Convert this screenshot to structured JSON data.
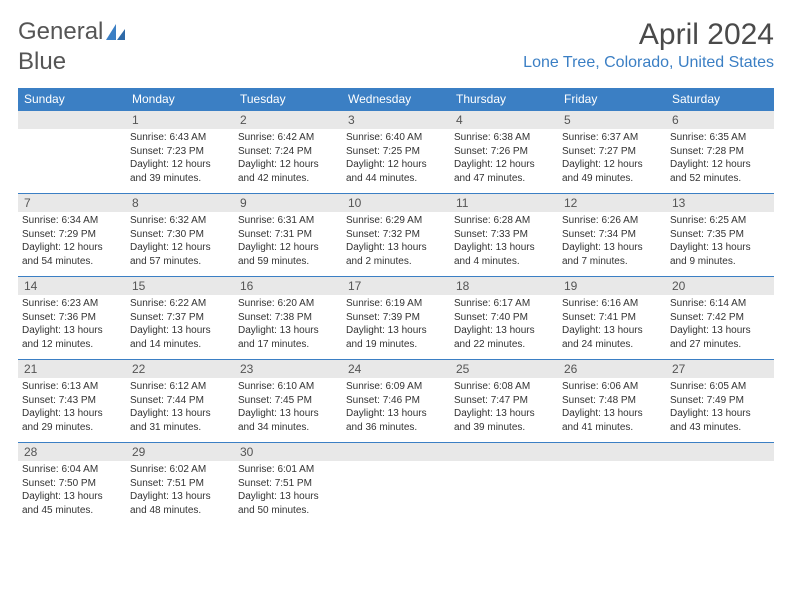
{
  "brand": {
    "part1": "General",
    "part2": "Blue"
  },
  "title": "April 2024",
  "location": "Lone Tree, Colorado, United States",
  "colors": {
    "accent": "#3b7fc4",
    "header_text": "#ffffff",
    "daynum_bg": "#e8e8e8",
    "text": "#333333",
    "title_color": "#4a4a4a"
  },
  "weekdays": [
    "Sunday",
    "Monday",
    "Tuesday",
    "Wednesday",
    "Thursday",
    "Friday",
    "Saturday"
  ],
  "weeks": [
    [
      {
        "n": "",
        "lines": []
      },
      {
        "n": "1",
        "lines": [
          "Sunrise: 6:43 AM",
          "Sunset: 7:23 PM",
          "Daylight: 12 hours",
          "and 39 minutes."
        ]
      },
      {
        "n": "2",
        "lines": [
          "Sunrise: 6:42 AM",
          "Sunset: 7:24 PM",
          "Daylight: 12 hours",
          "and 42 minutes."
        ]
      },
      {
        "n": "3",
        "lines": [
          "Sunrise: 6:40 AM",
          "Sunset: 7:25 PM",
          "Daylight: 12 hours",
          "and 44 minutes."
        ]
      },
      {
        "n": "4",
        "lines": [
          "Sunrise: 6:38 AM",
          "Sunset: 7:26 PM",
          "Daylight: 12 hours",
          "and 47 minutes."
        ]
      },
      {
        "n": "5",
        "lines": [
          "Sunrise: 6:37 AM",
          "Sunset: 7:27 PM",
          "Daylight: 12 hours",
          "and 49 minutes."
        ]
      },
      {
        "n": "6",
        "lines": [
          "Sunrise: 6:35 AM",
          "Sunset: 7:28 PM",
          "Daylight: 12 hours",
          "and 52 minutes."
        ]
      }
    ],
    [
      {
        "n": "7",
        "lines": [
          "Sunrise: 6:34 AM",
          "Sunset: 7:29 PM",
          "Daylight: 12 hours",
          "and 54 minutes."
        ]
      },
      {
        "n": "8",
        "lines": [
          "Sunrise: 6:32 AM",
          "Sunset: 7:30 PM",
          "Daylight: 12 hours",
          "and 57 minutes."
        ]
      },
      {
        "n": "9",
        "lines": [
          "Sunrise: 6:31 AM",
          "Sunset: 7:31 PM",
          "Daylight: 12 hours",
          "and 59 minutes."
        ]
      },
      {
        "n": "10",
        "lines": [
          "Sunrise: 6:29 AM",
          "Sunset: 7:32 PM",
          "Daylight: 13 hours",
          "and 2 minutes."
        ]
      },
      {
        "n": "11",
        "lines": [
          "Sunrise: 6:28 AM",
          "Sunset: 7:33 PM",
          "Daylight: 13 hours",
          "and 4 minutes."
        ]
      },
      {
        "n": "12",
        "lines": [
          "Sunrise: 6:26 AM",
          "Sunset: 7:34 PM",
          "Daylight: 13 hours",
          "and 7 minutes."
        ]
      },
      {
        "n": "13",
        "lines": [
          "Sunrise: 6:25 AM",
          "Sunset: 7:35 PM",
          "Daylight: 13 hours",
          "and 9 minutes."
        ]
      }
    ],
    [
      {
        "n": "14",
        "lines": [
          "Sunrise: 6:23 AM",
          "Sunset: 7:36 PM",
          "Daylight: 13 hours",
          "and 12 minutes."
        ]
      },
      {
        "n": "15",
        "lines": [
          "Sunrise: 6:22 AM",
          "Sunset: 7:37 PM",
          "Daylight: 13 hours",
          "and 14 minutes."
        ]
      },
      {
        "n": "16",
        "lines": [
          "Sunrise: 6:20 AM",
          "Sunset: 7:38 PM",
          "Daylight: 13 hours",
          "and 17 minutes."
        ]
      },
      {
        "n": "17",
        "lines": [
          "Sunrise: 6:19 AM",
          "Sunset: 7:39 PM",
          "Daylight: 13 hours",
          "and 19 minutes."
        ]
      },
      {
        "n": "18",
        "lines": [
          "Sunrise: 6:17 AM",
          "Sunset: 7:40 PM",
          "Daylight: 13 hours",
          "and 22 minutes."
        ]
      },
      {
        "n": "19",
        "lines": [
          "Sunrise: 6:16 AM",
          "Sunset: 7:41 PM",
          "Daylight: 13 hours",
          "and 24 minutes."
        ]
      },
      {
        "n": "20",
        "lines": [
          "Sunrise: 6:14 AM",
          "Sunset: 7:42 PM",
          "Daylight: 13 hours",
          "and 27 minutes."
        ]
      }
    ],
    [
      {
        "n": "21",
        "lines": [
          "Sunrise: 6:13 AM",
          "Sunset: 7:43 PM",
          "Daylight: 13 hours",
          "and 29 minutes."
        ]
      },
      {
        "n": "22",
        "lines": [
          "Sunrise: 6:12 AM",
          "Sunset: 7:44 PM",
          "Daylight: 13 hours",
          "and 31 minutes."
        ]
      },
      {
        "n": "23",
        "lines": [
          "Sunrise: 6:10 AM",
          "Sunset: 7:45 PM",
          "Daylight: 13 hours",
          "and 34 minutes."
        ]
      },
      {
        "n": "24",
        "lines": [
          "Sunrise: 6:09 AM",
          "Sunset: 7:46 PM",
          "Daylight: 13 hours",
          "and 36 minutes."
        ]
      },
      {
        "n": "25",
        "lines": [
          "Sunrise: 6:08 AM",
          "Sunset: 7:47 PM",
          "Daylight: 13 hours",
          "and 39 minutes."
        ]
      },
      {
        "n": "26",
        "lines": [
          "Sunrise: 6:06 AM",
          "Sunset: 7:48 PM",
          "Daylight: 13 hours",
          "and 41 minutes."
        ]
      },
      {
        "n": "27",
        "lines": [
          "Sunrise: 6:05 AM",
          "Sunset: 7:49 PM",
          "Daylight: 13 hours",
          "and 43 minutes."
        ]
      }
    ],
    [
      {
        "n": "28",
        "lines": [
          "Sunrise: 6:04 AM",
          "Sunset: 7:50 PM",
          "Daylight: 13 hours",
          "and 45 minutes."
        ]
      },
      {
        "n": "29",
        "lines": [
          "Sunrise: 6:02 AM",
          "Sunset: 7:51 PM",
          "Daylight: 13 hours",
          "and 48 minutes."
        ]
      },
      {
        "n": "30",
        "lines": [
          "Sunrise: 6:01 AM",
          "Sunset: 7:51 PM",
          "Daylight: 13 hours",
          "and 50 minutes."
        ]
      },
      {
        "n": "",
        "lines": []
      },
      {
        "n": "",
        "lines": []
      },
      {
        "n": "",
        "lines": []
      },
      {
        "n": "",
        "lines": []
      }
    ]
  ]
}
